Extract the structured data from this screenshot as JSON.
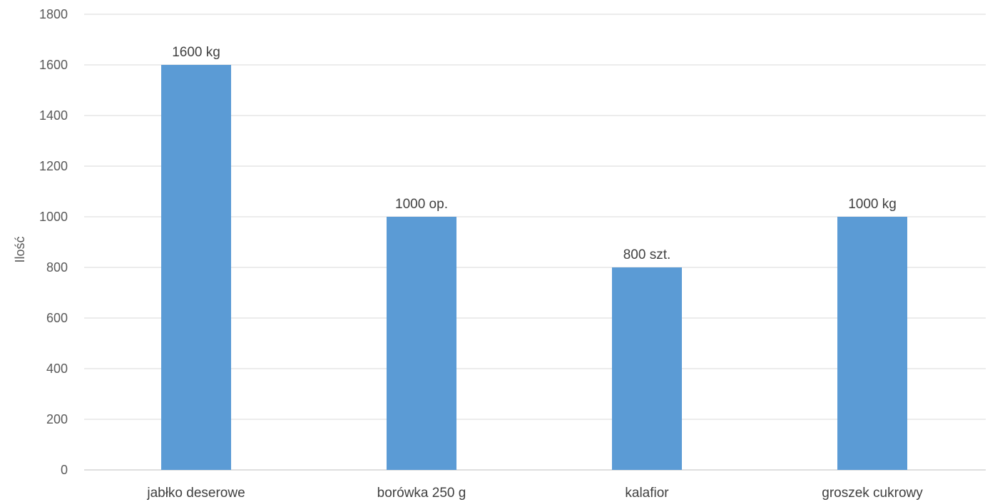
{
  "chart_data": {
    "type": "bar",
    "title": "",
    "xlabel": "",
    "ylabel": "Ilość",
    "ylim": [
      0,
      1800
    ],
    "yticks": [
      0,
      200,
      400,
      600,
      800,
      1000,
      1200,
      1400,
      1600,
      1800
    ],
    "grid": true,
    "categories": [
      "jabłko deserowe",
      "borówka 250 g",
      "kalafior",
      "groszek cukrowy"
    ],
    "values": [
      1600,
      1000,
      800,
      1000
    ],
    "data_labels": [
      "1600 kg",
      "1000 op.",
      "800 szt.",
      "1000 kg"
    ],
    "bar_color": "#5b9bd5"
  }
}
